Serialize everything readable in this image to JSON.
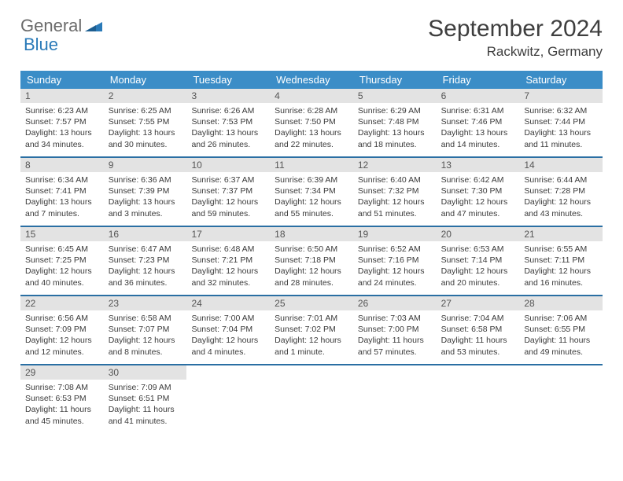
{
  "logo": {
    "text1": "General",
    "text2": "Blue"
  },
  "title": "September 2024",
  "location": "Rackwitz, Germany",
  "colors": {
    "header_bg": "#3b8dc7",
    "header_text": "#ffffff",
    "daynum_bg": "#e3e3e3",
    "week_border": "#2a6fa3",
    "text": "#3a3a3a",
    "logo_blue": "#2a7ab8",
    "logo_gray": "#6b6b6b"
  },
  "weekdays": [
    "Sunday",
    "Monday",
    "Tuesday",
    "Wednesday",
    "Thursday",
    "Friday",
    "Saturday"
  ],
  "weeks": [
    [
      {
        "day": "1",
        "sunrise": "Sunrise: 6:23 AM",
        "sunset": "Sunset: 7:57 PM",
        "daylight": "Daylight: 13 hours and 34 minutes."
      },
      {
        "day": "2",
        "sunrise": "Sunrise: 6:25 AM",
        "sunset": "Sunset: 7:55 PM",
        "daylight": "Daylight: 13 hours and 30 minutes."
      },
      {
        "day": "3",
        "sunrise": "Sunrise: 6:26 AM",
        "sunset": "Sunset: 7:53 PM",
        "daylight": "Daylight: 13 hours and 26 minutes."
      },
      {
        "day": "4",
        "sunrise": "Sunrise: 6:28 AM",
        "sunset": "Sunset: 7:50 PM",
        "daylight": "Daylight: 13 hours and 22 minutes."
      },
      {
        "day": "5",
        "sunrise": "Sunrise: 6:29 AM",
        "sunset": "Sunset: 7:48 PM",
        "daylight": "Daylight: 13 hours and 18 minutes."
      },
      {
        "day": "6",
        "sunrise": "Sunrise: 6:31 AM",
        "sunset": "Sunset: 7:46 PM",
        "daylight": "Daylight: 13 hours and 14 minutes."
      },
      {
        "day": "7",
        "sunrise": "Sunrise: 6:32 AM",
        "sunset": "Sunset: 7:44 PM",
        "daylight": "Daylight: 13 hours and 11 minutes."
      }
    ],
    [
      {
        "day": "8",
        "sunrise": "Sunrise: 6:34 AM",
        "sunset": "Sunset: 7:41 PM",
        "daylight": "Daylight: 13 hours and 7 minutes."
      },
      {
        "day": "9",
        "sunrise": "Sunrise: 6:36 AM",
        "sunset": "Sunset: 7:39 PM",
        "daylight": "Daylight: 13 hours and 3 minutes."
      },
      {
        "day": "10",
        "sunrise": "Sunrise: 6:37 AM",
        "sunset": "Sunset: 7:37 PM",
        "daylight": "Daylight: 12 hours and 59 minutes."
      },
      {
        "day": "11",
        "sunrise": "Sunrise: 6:39 AM",
        "sunset": "Sunset: 7:34 PM",
        "daylight": "Daylight: 12 hours and 55 minutes."
      },
      {
        "day": "12",
        "sunrise": "Sunrise: 6:40 AM",
        "sunset": "Sunset: 7:32 PM",
        "daylight": "Daylight: 12 hours and 51 minutes."
      },
      {
        "day": "13",
        "sunrise": "Sunrise: 6:42 AM",
        "sunset": "Sunset: 7:30 PM",
        "daylight": "Daylight: 12 hours and 47 minutes."
      },
      {
        "day": "14",
        "sunrise": "Sunrise: 6:44 AM",
        "sunset": "Sunset: 7:28 PM",
        "daylight": "Daylight: 12 hours and 43 minutes."
      }
    ],
    [
      {
        "day": "15",
        "sunrise": "Sunrise: 6:45 AM",
        "sunset": "Sunset: 7:25 PM",
        "daylight": "Daylight: 12 hours and 40 minutes."
      },
      {
        "day": "16",
        "sunrise": "Sunrise: 6:47 AM",
        "sunset": "Sunset: 7:23 PM",
        "daylight": "Daylight: 12 hours and 36 minutes."
      },
      {
        "day": "17",
        "sunrise": "Sunrise: 6:48 AM",
        "sunset": "Sunset: 7:21 PM",
        "daylight": "Daylight: 12 hours and 32 minutes."
      },
      {
        "day": "18",
        "sunrise": "Sunrise: 6:50 AM",
        "sunset": "Sunset: 7:18 PM",
        "daylight": "Daylight: 12 hours and 28 minutes."
      },
      {
        "day": "19",
        "sunrise": "Sunrise: 6:52 AM",
        "sunset": "Sunset: 7:16 PM",
        "daylight": "Daylight: 12 hours and 24 minutes."
      },
      {
        "day": "20",
        "sunrise": "Sunrise: 6:53 AM",
        "sunset": "Sunset: 7:14 PM",
        "daylight": "Daylight: 12 hours and 20 minutes."
      },
      {
        "day": "21",
        "sunrise": "Sunrise: 6:55 AM",
        "sunset": "Sunset: 7:11 PM",
        "daylight": "Daylight: 12 hours and 16 minutes."
      }
    ],
    [
      {
        "day": "22",
        "sunrise": "Sunrise: 6:56 AM",
        "sunset": "Sunset: 7:09 PM",
        "daylight": "Daylight: 12 hours and 12 minutes."
      },
      {
        "day": "23",
        "sunrise": "Sunrise: 6:58 AM",
        "sunset": "Sunset: 7:07 PM",
        "daylight": "Daylight: 12 hours and 8 minutes."
      },
      {
        "day": "24",
        "sunrise": "Sunrise: 7:00 AM",
        "sunset": "Sunset: 7:04 PM",
        "daylight": "Daylight: 12 hours and 4 minutes."
      },
      {
        "day": "25",
        "sunrise": "Sunrise: 7:01 AM",
        "sunset": "Sunset: 7:02 PM",
        "daylight": "Daylight: 12 hours and 1 minute."
      },
      {
        "day": "26",
        "sunrise": "Sunrise: 7:03 AM",
        "sunset": "Sunset: 7:00 PM",
        "daylight": "Daylight: 11 hours and 57 minutes."
      },
      {
        "day": "27",
        "sunrise": "Sunrise: 7:04 AM",
        "sunset": "Sunset: 6:58 PM",
        "daylight": "Daylight: 11 hours and 53 minutes."
      },
      {
        "day": "28",
        "sunrise": "Sunrise: 7:06 AM",
        "sunset": "Sunset: 6:55 PM",
        "daylight": "Daylight: 11 hours and 49 minutes."
      }
    ],
    [
      {
        "day": "29",
        "sunrise": "Sunrise: 7:08 AM",
        "sunset": "Sunset: 6:53 PM",
        "daylight": "Daylight: 11 hours and 45 minutes."
      },
      {
        "day": "30",
        "sunrise": "Sunrise: 7:09 AM",
        "sunset": "Sunset: 6:51 PM",
        "daylight": "Daylight: 11 hours and 41 minutes."
      },
      {
        "empty": true
      },
      {
        "empty": true
      },
      {
        "empty": true
      },
      {
        "empty": true
      },
      {
        "empty": true
      }
    ]
  ]
}
